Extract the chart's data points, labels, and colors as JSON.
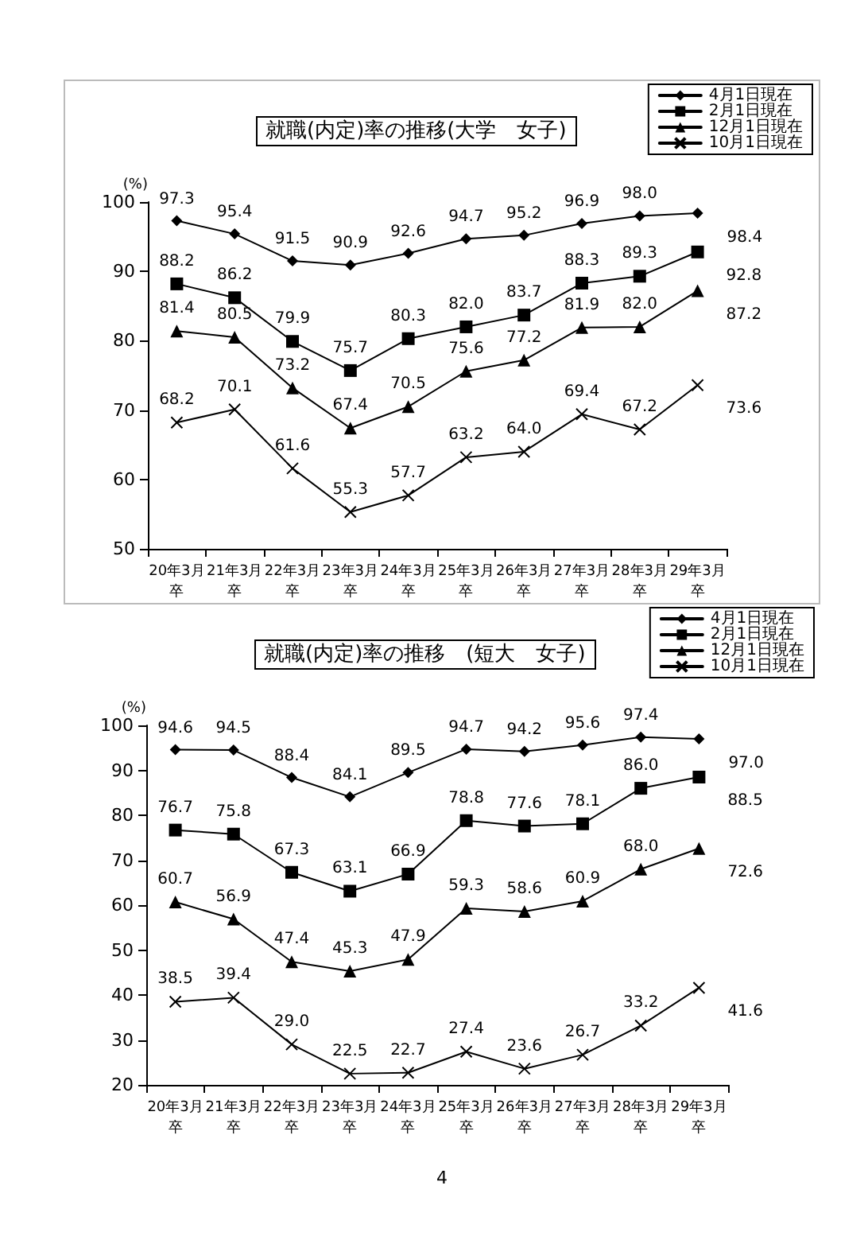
{
  "chart_data": [
    {
      "type": "line",
      "title": "就職(内定)率の推移(大学　女子)",
      "ylabel": "(%)",
      "categories": [
        "20年3月卒",
        "21年3月卒",
        "22年3月卒",
        "23年3月卒",
        "24年3月卒",
        "25年3月卒",
        "26年3月卒",
        "27年3月卒",
        "28年3月卒",
        "29年3月卒"
      ],
      "series": [
        {
          "name": "4月1日現在",
          "color": "#000000",
          "marker": "diamond",
          "values": [
            97.3,
            95.4,
            91.5,
            90.9,
            92.6,
            94.7,
            95.2,
            96.9,
            98.0,
            98.4
          ],
          "value_labels": [
            "97.3",
            "95.4",
            "91.5",
            "90.9",
            "92.6",
            "94.7",
            "95.2",
            "96.9",
            "98.0",
            "98.4"
          ]
        },
        {
          "name": "2月1日現在",
          "color": "#000000",
          "marker": "square",
          "values": [
            88.2,
            86.2,
            79.9,
            75.7,
            80.3,
            82.0,
            83.7,
            88.3,
            89.3,
            92.8
          ],
          "value_labels": [
            "88.2",
            "86.2",
            "79.9",
            "75.7",
            "80.3",
            "82.0",
            "83.7",
            "88.3",
            "89.3",
            "92.8"
          ]
        },
        {
          "name": "12月1日現在",
          "color": "#000000",
          "marker": "triangle",
          "values": [
            81.4,
            80.5,
            73.2,
            67.4,
            70.5,
            75.6,
            77.2,
            81.9,
            82.0,
            87.2
          ],
          "value_labels": [
            "81.4",
            "80.5",
            "73.2",
            "67.4",
            "70.5",
            "75.6",
            "77.2",
            "81.9",
            "82.0",
            "87.2"
          ]
        },
        {
          "name": "10月1日現在",
          "color": "#000000",
          "marker": "cross",
          "values": [
            68.2,
            70.1,
            61.6,
            55.3,
            57.7,
            63.2,
            64.0,
            69.4,
            67.2,
            73.6
          ],
          "value_labels": [
            "68.2",
            "70.1",
            "61.6",
            "55.3",
            "57.7",
            "63.2",
            "64.0",
            "69.4",
            "67.2",
            "73.6"
          ]
        }
      ],
      "ylim": [
        50,
        100
      ],
      "yticks": [
        50,
        60,
        70,
        80,
        90,
        100
      ],
      "grid": false,
      "legend": "top right",
      "line_style": "solid"
    },
    {
      "type": "line",
      "title": "就職(内定)率の推移　(短大　女子)",
      "ylabel": "(%)",
      "categories": [
        "20年3月卒",
        "21年3月卒",
        "22年3月卒",
        "23年3月卒",
        "24年3月卒",
        "25年3月卒",
        "26年3月卒",
        "27年3月卒",
        "28年3月卒",
        "29年3月卒"
      ],
      "series": [
        {
          "name": "4月1日現在",
          "color": "#000000",
          "marker": "diamond",
          "values": [
            94.6,
            94.5,
            88.4,
            84.1,
            89.5,
            94.7,
            94.2,
            95.6,
            97.4,
            97.0
          ],
          "value_labels": [
            "94.6",
            "94.5",
            "88.4",
            "84.1",
            "89.5",
            "94.7",
            "94.2",
            "95.6",
            "97.4",
            "97.0"
          ]
        },
        {
          "name": "2月1日現在",
          "color": "#000000",
          "marker": "square",
          "values": [
            76.7,
            75.8,
            67.3,
            63.1,
            66.9,
            78.8,
            77.6,
            78.1,
            86.0,
            88.5
          ],
          "value_labels": [
            "76.7",
            "75.8",
            "67.3",
            "63.1",
            "66.9",
            "78.8",
            "77.6",
            "78.1",
            "86.0",
            "88.5"
          ]
        },
        {
          "name": "12月1日現在",
          "color": "#000000",
          "marker": "triangle",
          "values": [
            60.7,
            56.9,
            47.4,
            45.3,
            47.9,
            59.3,
            58.6,
            60.9,
            68.0,
            72.6
          ],
          "value_labels": [
            "60.7",
            "56.9",
            "47.4",
            "45.3",
            "47.9",
            "59.3",
            "58.6",
            "60.9",
            "68.0",
            "72.6"
          ]
        },
        {
          "name": "10月1日現在",
          "color": "#000000",
          "marker": "cross",
          "values": [
            38.5,
            39.4,
            29.0,
            22.5,
            22.7,
            27.4,
            23.6,
            26.7,
            33.2,
            41.6
          ],
          "value_labels": [
            "38.5",
            "39.4",
            "29.0",
            "22.5",
            "22.7",
            "27.4",
            "23.6",
            "26.7",
            "33.2",
            "41.6"
          ]
        }
      ],
      "ylim": [
        20,
        100
      ],
      "yticks": [
        20,
        30,
        40,
        50,
        60,
        70,
        80,
        90,
        100
      ],
      "grid": false,
      "legend": "top right",
      "line_style": "solid",
      "annotations": [
        "4"
      ]
    }
  ]
}
